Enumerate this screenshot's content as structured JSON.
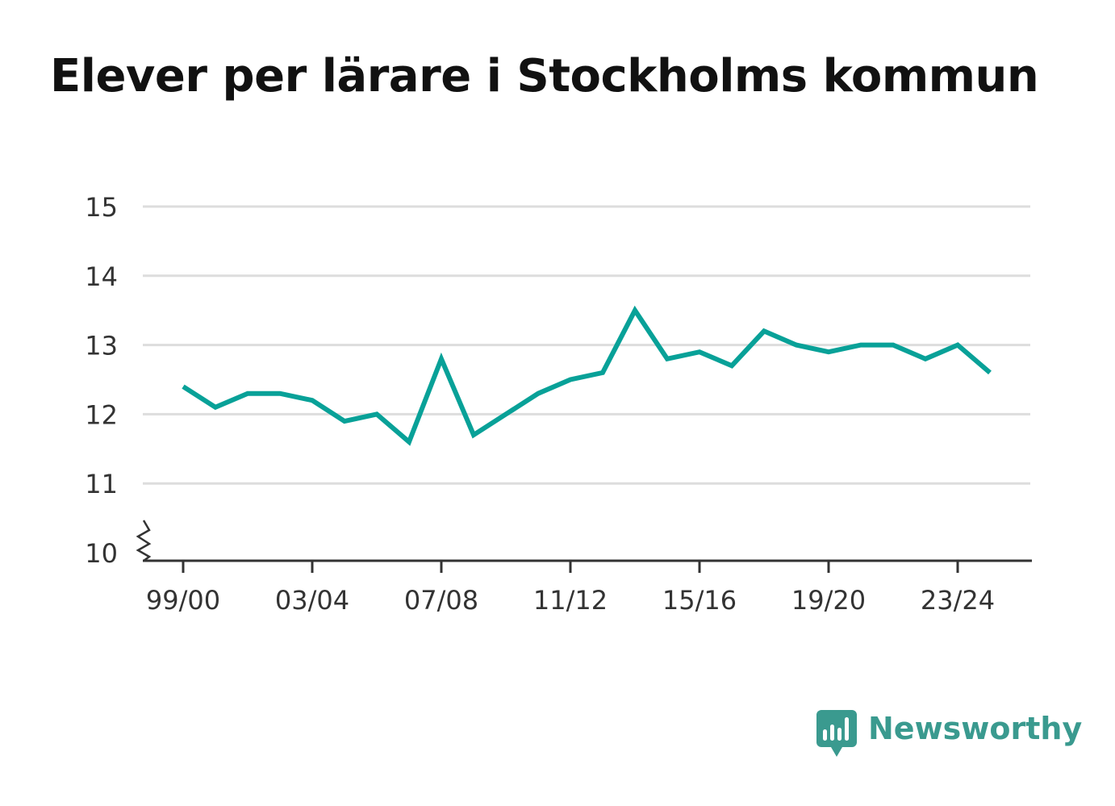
{
  "title": "Elever per lärare i Stockholms kommun",
  "brand": {
    "name": "Newsworthy",
    "icon": "bar-chart-icon",
    "color": "#3a9a8f"
  },
  "colors": {
    "line": "#08a198",
    "grid": "#dddddd",
    "axis": "#333333"
  },
  "chart_data": {
    "type": "line",
    "title": "Elever per lärare i Stockholms kommun",
    "xlabel": "",
    "ylabel": "",
    "x": [
      "99/00",
      "00/01",
      "01/02",
      "02/03",
      "03/04",
      "04/05",
      "05/06",
      "06/07",
      "07/08",
      "08/09",
      "09/10",
      "10/11",
      "11/12",
      "12/13",
      "13/14",
      "14/15",
      "15/16",
      "16/17",
      "17/18",
      "18/19",
      "19/20",
      "20/21",
      "21/22",
      "22/23",
      "23/24",
      "24/25"
    ],
    "x_tick_labels": [
      "99/00",
      "03/04",
      "07/08",
      "11/12",
      "15/16",
      "19/20",
      "23/24"
    ],
    "series": [
      {
        "values": [
          12.4,
          12.1,
          12.3,
          12.3,
          12.2,
          11.9,
          12.0,
          11.6,
          12.8,
          11.7,
          12.0,
          12.3,
          12.5,
          12.6,
          13.5,
          12.8,
          12.9,
          12.7,
          13.2,
          13.0,
          12.9,
          13.0,
          13.0,
          12.8,
          13.0,
          12.6
        ]
      }
    ],
    "yticks": [
      10,
      11,
      12,
      13,
      14,
      15
    ],
    "ylim": [
      10,
      15
    ],
    "y_axis_break": true,
    "grid": true,
    "legend": "none"
  }
}
